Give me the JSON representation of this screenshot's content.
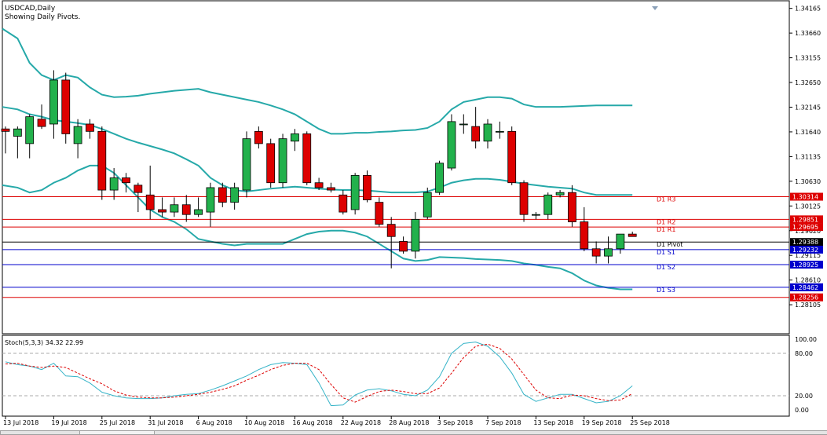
{
  "window": {
    "symbol_line": "USDCAD,Daily",
    "subtitle": "Showing Daily Pivots."
  },
  "subwindow": {
    "label": "Stoch(5,3,3) 34.32 22.99",
    "levels": [
      "100.00",
      "80.00",
      "20.00",
      "0.00"
    ]
  },
  "colors": {
    "bull": "#22b14c",
    "bear": "#dd0000",
    "bands": "#26a9a9",
    "resistance": "#dd0000",
    "support": "#0000cc",
    "pivot": "#000000",
    "stoch_main": "#36b4c8",
    "stoch_signal": "#dd0000"
  },
  "chart_data": [
    {
      "type": "candlestick",
      "title": "USDCAD,Daily",
      "subtitle": "Showing Daily Pivots.",
      "ylim": [
        1.2785,
        1.3424
      ],
      "y_ticks": [
        "1.34165",
        "1.33660",
        "1.33155",
        "1.32650",
        "1.32145",
        "1.31640",
        "1.31135",
        "1.30630",
        "1.30125",
        "1.29620",
        "1.29115",
        "1.28610",
        "1.28105"
      ],
      "x_labels": [
        {
          "label": "13 Jul 2018",
          "i": 0
        },
        {
          "label": "19 Jul 2018",
          "i": 4
        },
        {
          "label": "25 Jul 2018",
          "i": 8
        },
        {
          "label": "31 Jul 2018",
          "i": 12
        },
        {
          "label": "6 Aug 2018",
          "i": 16
        },
        {
          "label": "10 Aug 2018",
          "i": 20
        },
        {
          "label": "16 Aug 2018",
          "i": 24
        },
        {
          "label": "22 Aug 2018",
          "i": 28
        },
        {
          "label": "28 Aug 2018",
          "i": 32
        },
        {
          "label": "3 Sep 2018",
          "i": 36
        },
        {
          "label": "7 Sep 2018",
          "i": 40
        },
        {
          "label": "13 Sep 2018",
          "i": 44
        },
        {
          "label": "19 Sep 2018",
          "i": 48
        },
        {
          "label": "25 Sep 2018",
          "i": 52
        }
      ],
      "candles": [
        {
          "o": 1.317,
          "h": 1.3175,
          "l": 1.312,
          "c": 1.3165
        },
        {
          "o": 1.3155,
          "h": 1.3175,
          "l": 1.311,
          "c": 1.317
        },
        {
          "o": 1.314,
          "h": 1.32,
          "l": 1.311,
          "c": 1.3195
        },
        {
          "o": 1.319,
          "h": 1.322,
          "l": 1.317,
          "c": 1.3175
        },
        {
          "o": 1.318,
          "h": 1.329,
          "l": 1.315,
          "c": 1.327
        },
        {
          "o": 1.327,
          "h": 1.3285,
          "l": 1.314,
          "c": 1.316
        },
        {
          "o": 1.314,
          "h": 1.319,
          "l": 1.311,
          "c": 1.3175
        },
        {
          "o": 1.318,
          "h": 1.319,
          "l": 1.315,
          "c": 1.3165
        },
        {
          "o": 1.3165,
          "h": 1.3175,
          "l": 1.3025,
          "c": 1.3045
        },
        {
          "o": 1.3045,
          "h": 1.309,
          "l": 1.3025,
          "c": 1.307
        },
        {
          "o": 1.307,
          "h": 1.308,
          "l": 1.304,
          "c": 1.306
        },
        {
          "o": 1.3055,
          "h": 1.306,
          "l": 1.3,
          "c": 1.304
        },
        {
          "o": 1.3035,
          "h": 1.3095,
          "l": 1.2985,
          "c": 1.3005
        },
        {
          "o": 1.3005,
          "h": 1.303,
          "l": 1.299,
          "c": 1.3
        },
        {
          "o": 1.3,
          "h": 1.303,
          "l": 1.299,
          "c": 1.3015
        },
        {
          "o": 1.3015,
          "h": 1.3035,
          "l": 1.298,
          "c": 1.2995
        },
        {
          "o": 1.2995,
          "h": 1.303,
          "l": 1.299,
          "c": 1.3005
        },
        {
          "o": 1.3,
          "h": 1.306,
          "l": 1.297,
          "c": 1.305
        },
        {
          "o": 1.305,
          "h": 1.306,
          "l": 1.301,
          "c": 1.302
        },
        {
          "o": 1.302,
          "h": 1.306,
          "l": 1.3005,
          "c": 1.305
        },
        {
          "o": 1.3045,
          "h": 1.3165,
          "l": 1.303,
          "c": 1.315
        },
        {
          "o": 1.3165,
          "h": 1.3175,
          "l": 1.313,
          "c": 1.314
        },
        {
          "o": 1.314,
          "h": 1.315,
          "l": 1.305,
          "c": 1.306
        },
        {
          "o": 1.306,
          "h": 1.316,
          "l": 1.305,
          "c": 1.315
        },
        {
          "o": 1.3145,
          "h": 1.317,
          "l": 1.3125,
          "c": 1.316
        },
        {
          "o": 1.316,
          "h": 1.3165,
          "l": 1.3055,
          "c": 1.306
        },
        {
          "o": 1.306,
          "h": 1.307,
          "l": 1.3045,
          "c": 1.305
        },
        {
          "o": 1.305,
          "h": 1.306,
          "l": 1.304,
          "c": 1.3045
        },
        {
          "o": 1.3035,
          "h": 1.3045,
          "l": 1.2995,
          "c": 1.3
        },
        {
          "o": 1.3005,
          "h": 1.308,
          "l": 1.2995,
          "c": 1.3075
        },
        {
          "o": 1.3075,
          "h": 1.3085,
          "l": 1.302,
          "c": 1.3025
        },
        {
          "o": 1.302,
          "h": 1.303,
          "l": 1.297,
          "c": 1.2975
        },
        {
          "o": 1.2975,
          "h": 1.299,
          "l": 1.2885,
          "c": 1.295
        },
        {
          "o": 1.294,
          "h": 1.295,
          "l": 1.2915,
          "c": 1.292
        },
        {
          "o": 1.292,
          "h": 1.3,
          "l": 1.2905,
          "c": 1.2985
        },
        {
          "o": 1.299,
          "h": 1.305,
          "l": 1.2985,
          "c": 1.304
        },
        {
          "o": 1.304,
          "h": 1.3105,
          "l": 1.3035,
          "c": 1.31
        },
        {
          "o": 1.309,
          "h": 1.32,
          "l": 1.3085,
          "c": 1.3185
        },
        {
          "o": 1.318,
          "h": 1.32,
          "l": 1.316,
          "c": 1.318
        },
        {
          "o": 1.3175,
          "h": 1.3215,
          "l": 1.313,
          "c": 1.3145
        },
        {
          "o": 1.3145,
          "h": 1.319,
          "l": 1.313,
          "c": 1.318
        },
        {
          "o": 1.3165,
          "h": 1.3185,
          "l": 1.315,
          "c": 1.3165
        },
        {
          "o": 1.3165,
          "h": 1.3175,
          "l": 1.3055,
          "c": 1.306
        },
        {
          "o": 1.306,
          "h": 1.3065,
          "l": 1.298,
          "c": 1.2995
        },
        {
          "o": 1.2995,
          "h": 1.3,
          "l": 1.2985,
          "c": 1.2995
        },
        {
          "o": 1.2995,
          "h": 1.304,
          "l": 1.2985,
          "c": 1.3035
        },
        {
          "o": 1.3035,
          "h": 1.3045,
          "l": 1.303,
          "c": 1.304
        },
        {
          "o": 1.304,
          "h": 1.3055,
          "l": 1.297,
          "c": 1.298
        },
        {
          "o": 1.298,
          "h": 1.301,
          "l": 1.292,
          "c": 1.2925
        },
        {
          "o": 1.2925,
          "h": 1.294,
          "l": 1.2895,
          "c": 1.291
        },
        {
          "o": 1.291,
          "h": 1.295,
          "l": 1.2895,
          "c": 1.2925
        },
        {
          "o": 1.2925,
          "h": 1.295,
          "l": 1.2915,
          "c": 1.2955
        },
        {
          "o": 1.2955,
          "h": 1.296,
          "l": 1.295,
          "c": 1.295
        }
      ],
      "bollinger": {
        "upper": [
          1.3375,
          1.3355,
          1.3305,
          1.328,
          1.327,
          1.328,
          1.3275,
          1.3255,
          1.324,
          1.3235,
          1.3236,
          1.3238,
          1.3242,
          1.3245,
          1.3248,
          1.325,
          1.3252,
          1.3245,
          1.324,
          1.3235,
          1.323,
          1.3225,
          1.3218,
          1.321,
          1.32,
          1.3185,
          1.317,
          1.316,
          1.316,
          1.3162,
          1.3162,
          1.3164,
          1.3165,
          1.3167,
          1.3168,
          1.3172,
          1.3185,
          1.321,
          1.3225,
          1.323,
          1.3235,
          1.3235,
          1.3232,
          1.322,
          1.3215,
          1.3215,
          1.3215,
          1.3216,
          1.3217,
          1.3218,
          1.3218,
          1.3218,
          1.3218
        ],
        "middle": [
          1.3215,
          1.321,
          1.32,
          1.3195,
          1.3188,
          1.3185,
          1.3182,
          1.3178,
          1.317,
          1.316,
          1.315,
          1.3142,
          1.3135,
          1.3128,
          1.312,
          1.3108,
          1.3095,
          1.307,
          1.3055,
          1.3045,
          1.3042,
          1.3045,
          1.3048,
          1.305,
          1.3052,
          1.305,
          1.3048,
          1.3046,
          1.3045,
          1.3045,
          1.3044,
          1.3042,
          1.304,
          1.304,
          1.304,
          1.3042,
          1.305,
          1.306,
          1.3065,
          1.3068,
          1.3068,
          1.3066,
          1.3062,
          1.3058,
          1.3055,
          1.3052,
          1.305,
          1.3048,
          1.304,
          1.3035,
          1.3035,
          1.3035,
          1.3035
        ],
        "lower": [
          1.3055,
          1.305,
          1.304,
          1.3045,
          1.306,
          1.307,
          1.3085,
          1.3095,
          1.3095,
          1.308,
          1.3055,
          1.303,
          1.3005,
          1.299,
          1.298,
          1.2965,
          1.2945,
          1.294,
          1.2935,
          1.2932,
          1.2935,
          1.2935,
          1.2935,
          1.2935,
          1.2945,
          1.2955,
          1.296,
          1.2962,
          1.2962,
          1.2958,
          1.295,
          1.2935,
          1.292,
          1.2905,
          1.29,
          1.2902,
          1.2908,
          1.2907,
          1.2906,
          1.2904,
          1.2903,
          1.2902,
          1.29,
          1.2895,
          1.2892,
          1.2888,
          1.2885,
          1.2875,
          1.286,
          1.285,
          1.2845,
          1.2842,
          1.2842
        ]
      },
      "pivot_levels": [
        {
          "name": "D1 R3",
          "value": 1.30314,
          "label": "1.30314",
          "kind": "resistance",
          "label_bg": "#dd0000"
        },
        {
          "name": "D1 R2",
          "value": 1.29851,
          "label": "1.29851",
          "kind": "resistance",
          "label_bg": "#dd0000"
        },
        {
          "name": "D1 R1",
          "value": 1.29695,
          "label": "1.29695",
          "kind": "resistance",
          "label_bg": "#dd0000"
        },
        {
          "name": "D1 Pivot",
          "value": 1.29388,
          "label": "1.29388",
          "kind": "pivot",
          "label_bg": "#000000"
        },
        {
          "name": "D1 S1",
          "value": 1.29232,
          "label": "1.29232",
          "kind": "support",
          "label_bg": "#0000cc"
        },
        {
          "name": "D1 S2",
          "value": 1.28925,
          "label": "1.28925",
          "kind": "support",
          "label_bg": "#0000cc"
        },
        {
          "name": "D1 S3",
          "value": 1.28462,
          "label": "1.28462",
          "kind": "support",
          "label_bg": "#0000cc"
        },
        {
          "name": "",
          "value": 1.28256,
          "label": "1.28256",
          "kind": "resistance",
          "label_bg": "#dd0000"
        }
      ]
    },
    {
      "type": "line",
      "title": "Stoch(5,3,3) 34.32 22.99",
      "ylim": [
        0,
        100
      ],
      "dashed_levels": [
        80,
        20
      ],
      "series": [
        {
          "name": "main",
          "style": "solid",
          "values": [
            68,
            64,
            62,
            57,
            66,
            48,
            47,
            38,
            25,
            20,
            17,
            16,
            16,
            17,
            20,
            22,
            23,
            28,
            34,
            41,
            48,
            57,
            64,
            67,
            66,
            64,
            38,
            6,
            7,
            21,
            28,
            30,
            27,
            22,
            20,
            28,
            47,
            80,
            94,
            96,
            90,
            75,
            52,
            22,
            12,
            17,
            22,
            22,
            16,
            10,
            12,
            20,
            34
          ]
        },
        {
          "name": "signal",
          "style": "dashed",
          "values": [
            65,
            66,
            62,
            60,
            62,
            60,
            52,
            44,
            37,
            27,
            21,
            18,
            17,
            17,
            18,
            20,
            22,
            25,
            29,
            34,
            42,
            49,
            57,
            63,
            66,
            66,
            57,
            36,
            17,
            11,
            19,
            26,
            28,
            26,
            23,
            23,
            31,
            52,
            74,
            90,
            93,
            87,
            72,
            50,
            28,
            17,
            16,
            21,
            20,
            16,
            13,
            14,
            23
          ]
        }
      ]
    }
  ]
}
